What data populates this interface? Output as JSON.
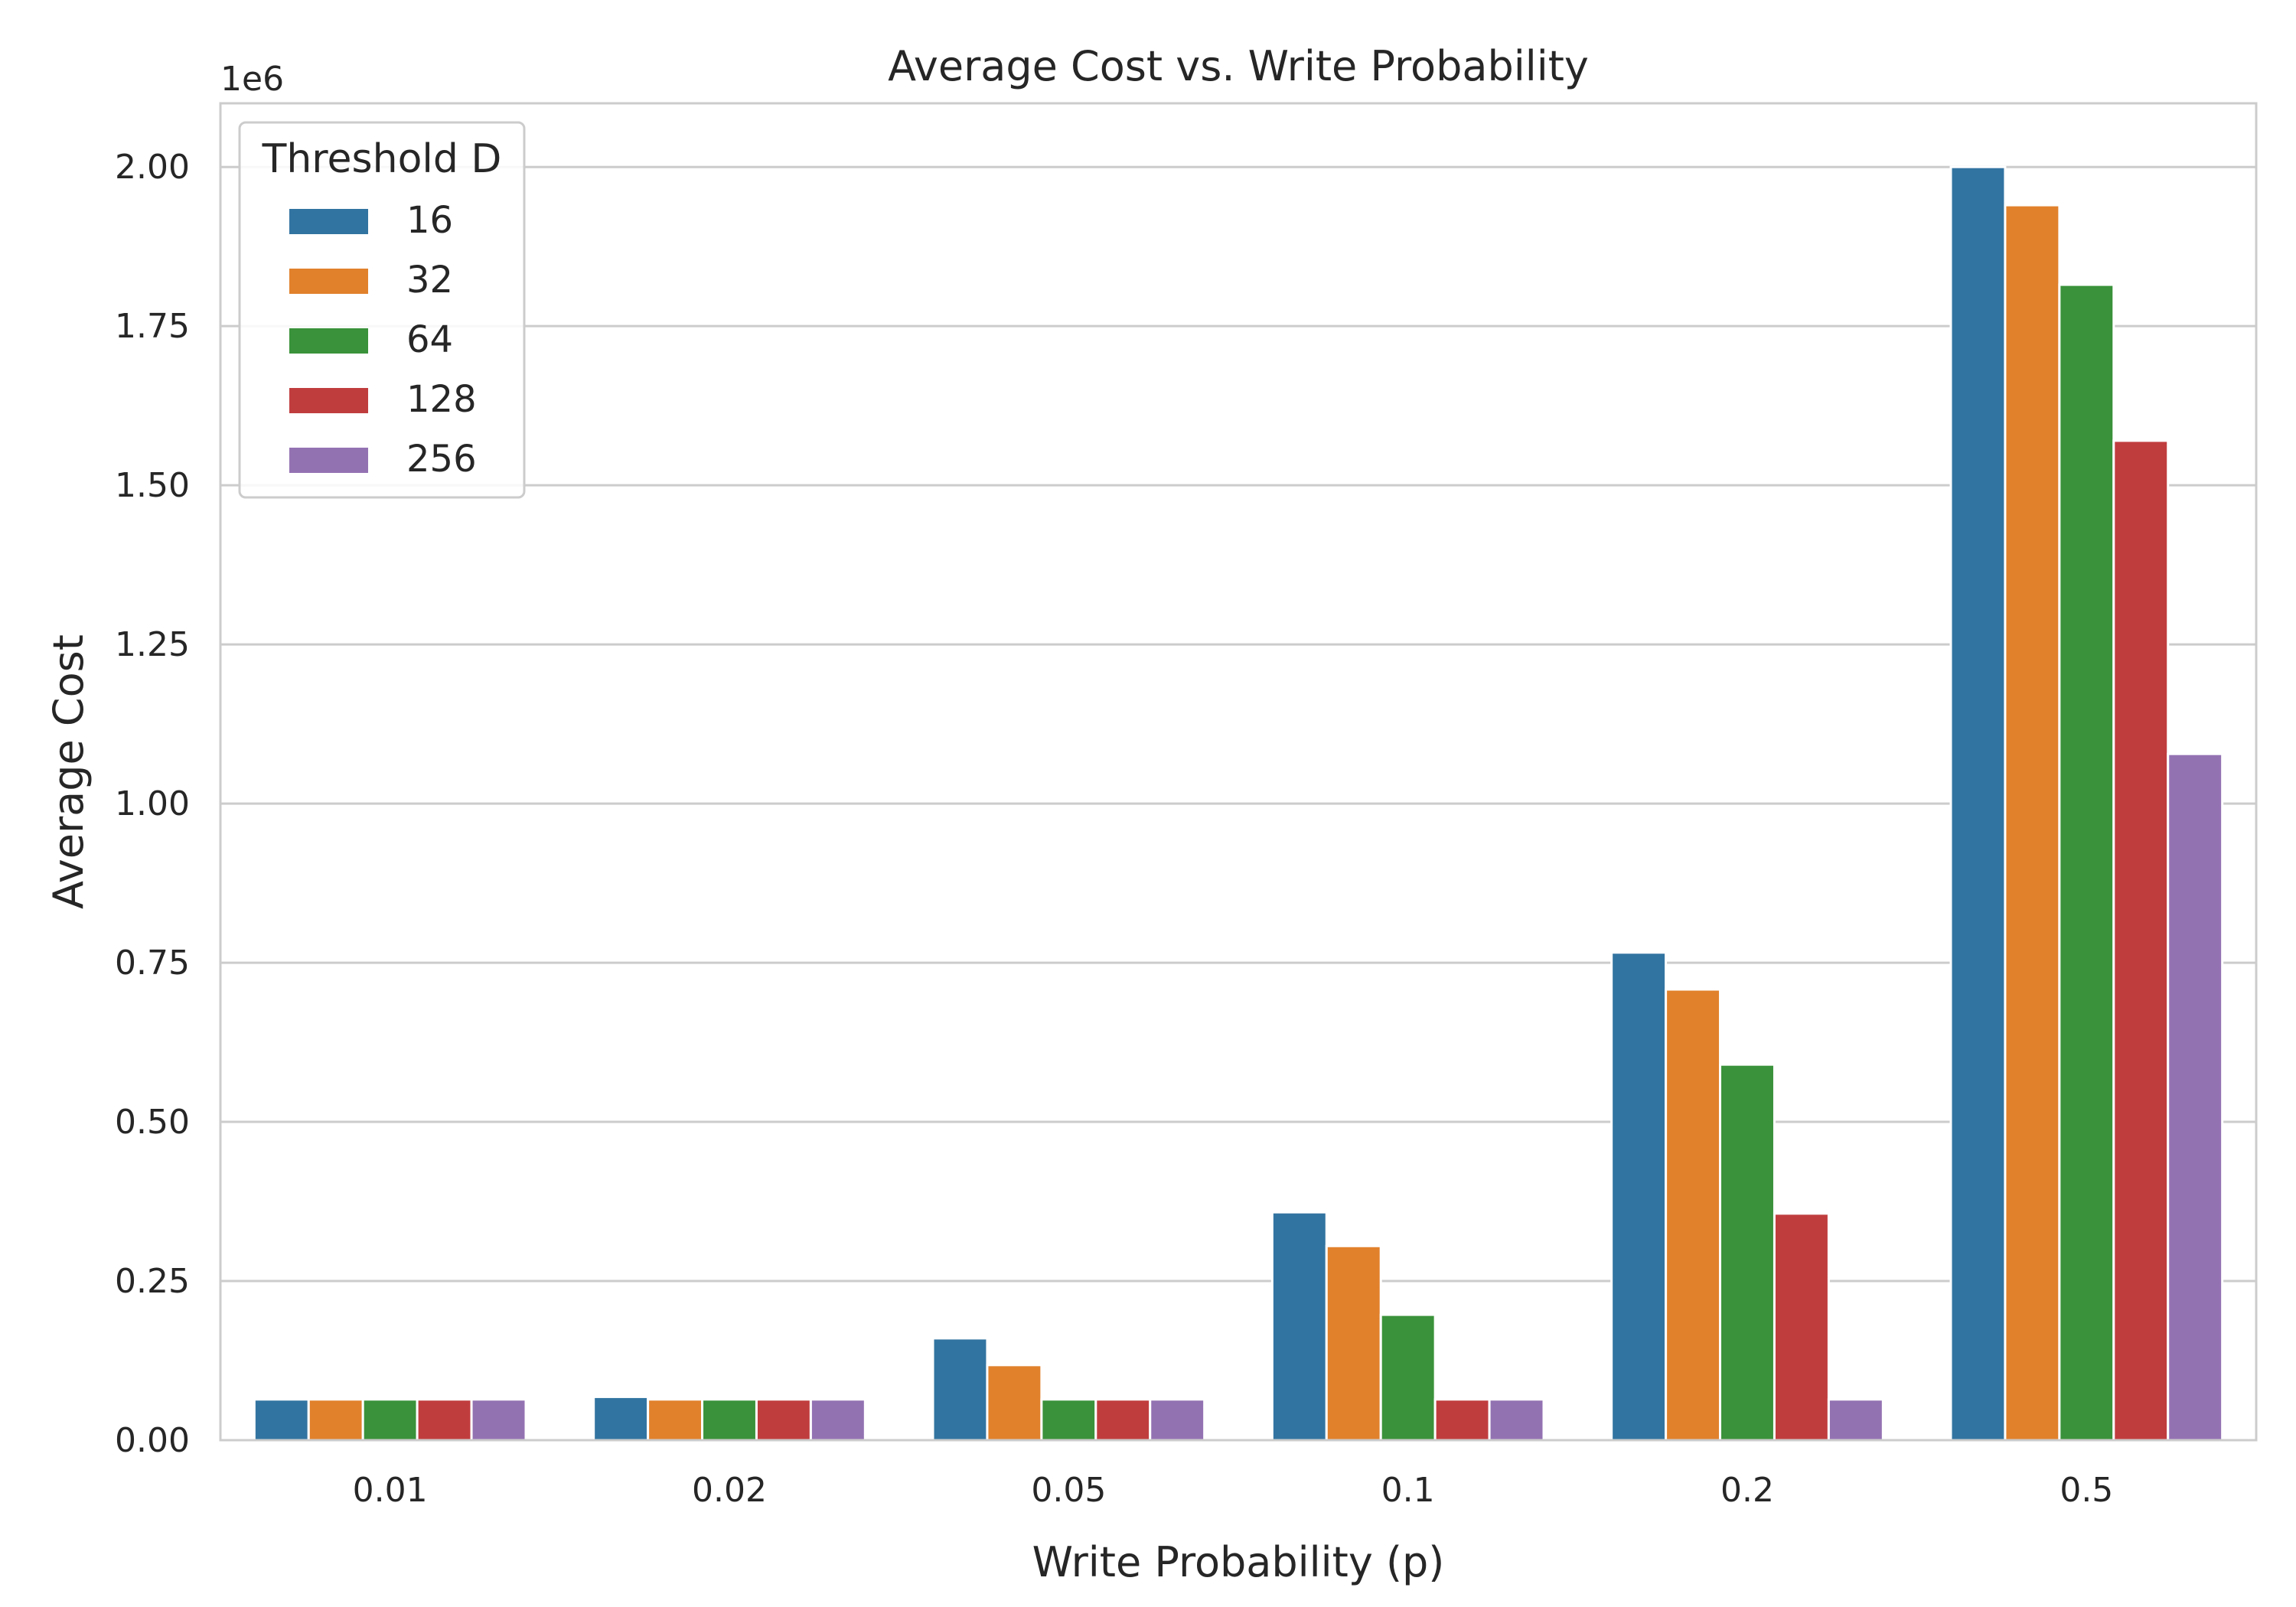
{
  "chart_data": {
    "type": "bar",
    "title": "Average Cost vs. Write Probability",
    "xlabel": "Write Probability (p)",
    "ylabel": "Average Cost",
    "y_offset_label": "1e6",
    "categories": [
      "0.01",
      "0.02",
      "0.05",
      "0.1",
      "0.2",
      "0.5"
    ],
    "ylim": [
      0,
      2100000
    ],
    "y_ticks": [
      0,
      250000,
      500000,
      750000,
      1000000,
      1250000,
      1500000,
      1750000,
      2000000
    ],
    "y_tick_labels": [
      "0.00",
      "0.25",
      "0.50",
      "0.75",
      "1.00",
      "1.25",
      "1.50",
      "1.75",
      "2.00"
    ],
    "grid": true,
    "legend": {
      "title": "Threshold D",
      "position": "top-left"
    },
    "series": [
      {
        "name": "16",
        "color": "#3274a1",
        "values": [
          64000,
          68000,
          160000,
          358000,
          766000,
          2000000
        ]
      },
      {
        "name": "32",
        "color": "#e1812c",
        "values": [
          64000,
          64000,
          118000,
          305000,
          708000,
          1940000
        ]
      },
      {
        "name": "64",
        "color": "#3a923a",
        "values": [
          64000,
          64000,
          64000,
          197000,
          590000,
          1815000
        ]
      },
      {
        "name": "128",
        "color": "#c03d3e",
        "values": [
          64000,
          64000,
          64000,
          64000,
          356000,
          1570000
        ]
      },
      {
        "name": "256",
        "color": "#9372b2",
        "values": [
          64000,
          64000,
          64000,
          64000,
          64000,
          1078000
        ]
      }
    ]
  }
}
